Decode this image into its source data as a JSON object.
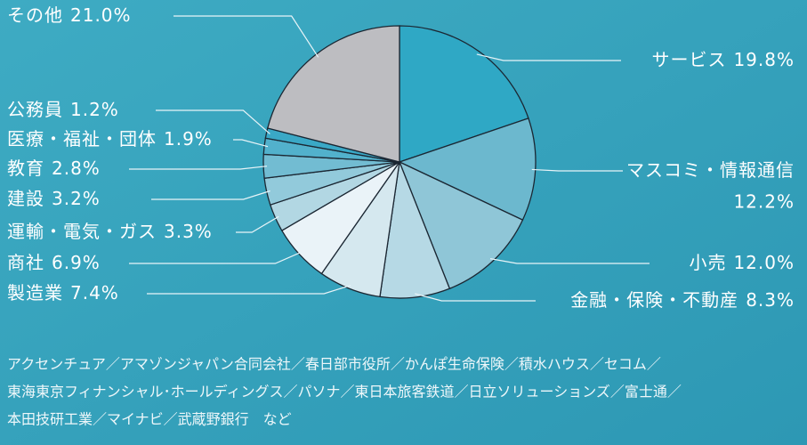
{
  "chart_data": {
    "type": "pie",
    "categories": [
      "サービス",
      "マスコミ・情報通信",
      "小売",
      "金融・保険・不動産",
      "製造業",
      "商社",
      "運輸・電気・ガス",
      "建設",
      "教育",
      "医療・福祉・団体",
      "公務員",
      "その他"
    ],
    "values": [
      19.8,
      12.2,
      12.0,
      8.3,
      7.4,
      6.9,
      3.3,
      3.2,
      2.8,
      1.9,
      1.2,
      21.0
    ],
    "value_labels": [
      "19.8%",
      "12.2%",
      "12.0%",
      "8.3%",
      "7.4%",
      "6.9%",
      "3.3%",
      "3.2%",
      "2.8%",
      "1.9%",
      "1.2%",
      "21.0%"
    ],
    "colors": [
      "#2fa8c5",
      "#6cb8ce",
      "#8fc6d7",
      "#b6d9e5",
      "#d5e8ef",
      "#eaf3f8",
      "#b2d7e3",
      "#92cadb",
      "#72bcd2",
      "#52b1cc",
      "#3aa8c6",
      "#bdbdc1"
    ]
  },
  "footer": [
    "アクセンチュア／アマゾンジャパン合同会社／春日部市役所／かんぽ生命保険／積水ハウス／セコム／",
    "東海東京フィナンシャル･ホールディングス／パソナ／東日本旅客鉄道／日立ソリューションズ／富士通／",
    "本田技研工業／マイナビ／武蔵野銀行　など"
  ]
}
